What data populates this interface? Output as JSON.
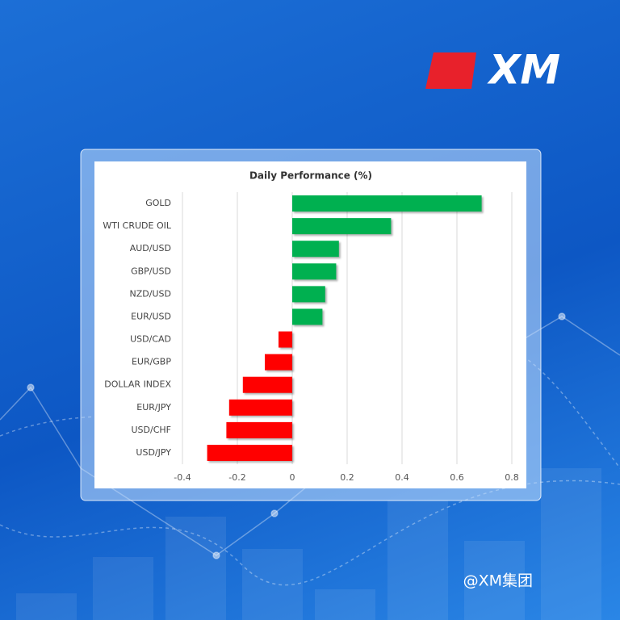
{
  "logo": "XM",
  "watermark": "@XM集团",
  "chart_data": {
    "type": "barh",
    "title": "Daily Performance (%)",
    "categories": [
      "GOLD",
      "WTI CRUDE OIL",
      "AUD/USD",
      "GBP/USD",
      "NZD/USD",
      "EUR/USD",
      "USD/CAD",
      "EUR/GBP",
      "DOLLAR INDEX",
      "EUR/JPY",
      "USD/CHF",
      "USD/JPY"
    ],
    "values": [
      0.69,
      0.36,
      0.17,
      0.16,
      0.12,
      0.11,
      -0.05,
      -0.1,
      -0.18,
      -0.23,
      -0.24,
      -0.31
    ],
    "positive_color": "#00b050",
    "negative_color": "#ff0000",
    "xlim": [
      -0.4,
      0.8
    ],
    "xticks": [
      -0.4,
      -0.2,
      0,
      0.2,
      0.4,
      0.6,
      0.8
    ],
    "grid": true
  }
}
